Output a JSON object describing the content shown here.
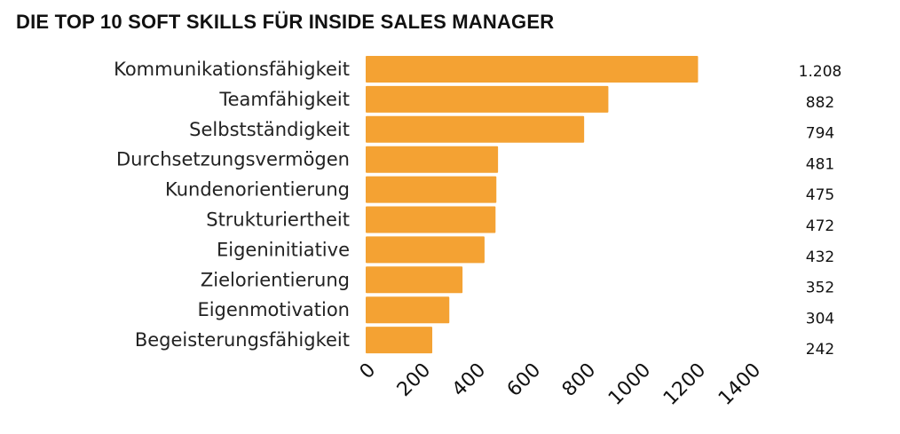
{
  "chart_data": {
    "type": "bar",
    "orientation": "horizontal",
    "title": "DIE TOP 10 SOFT SKILLS FÜR INSIDE SALES MANAGER",
    "categories": [
      "Kommunikationsfähigkeit",
      "Teamfähigkeit",
      "Selbstständigkeit",
      "Durchsetzungsvermögen",
      "Kundenorientierung",
      "Strukturiertheit",
      "Eigeninitiative",
      "Zielorientierung",
      "Eigenmotivation",
      "Begeisterungsfähigkeit"
    ],
    "values": [
      1208,
      882,
      794,
      481,
      475,
      472,
      432,
      352,
      304,
      242
    ],
    "value_labels": [
      "1.208",
      "882",
      "794",
      "481",
      "475",
      "472",
      "432",
      "352",
      "304",
      "242"
    ],
    "xticks": [
      "0",
      "200",
      "400",
      "600",
      "800",
      "1000",
      "1200",
      "1400"
    ],
    "xlim": [
      0,
      1400
    ],
    "xlabel": "",
    "ylabel": "",
    "grid": false,
    "bar_color": "#f4a233"
  }
}
